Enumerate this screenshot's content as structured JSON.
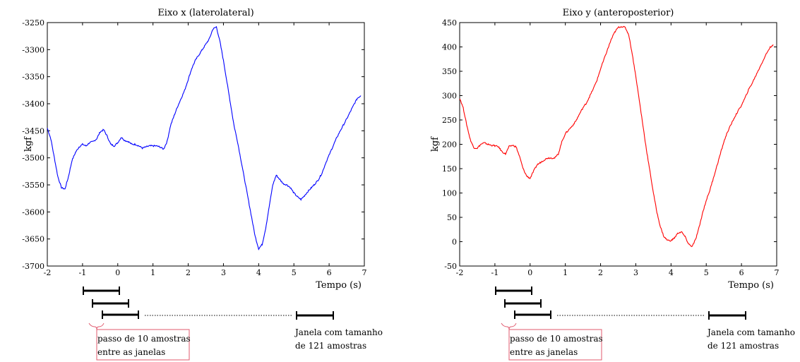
{
  "chart_data": [
    {
      "type": "line",
      "title": "Eixo x (laterolateral)",
      "xlabel": "Tempo (s)",
      "ylabel": "kgf",
      "xlim": [
        -2,
        7
      ],
      "ylim": [
        -3700,
        -3250
      ],
      "xticks": [
        "-2",
        "-1",
        "0",
        "1",
        "2",
        "3",
        "4",
        "5",
        "6",
        "7"
      ],
      "yticks": [
        "-3700",
        "-3650",
        "-3600",
        "-3550",
        "-3500",
        "-3450",
        "-3400",
        "-3350",
        "-3300",
        "-3250"
      ],
      "color": "#0000ff",
      "grid": false,
      "x": [
        -2.0,
        -1.9,
        -1.8,
        -1.7,
        -1.6,
        -1.5,
        -1.4,
        -1.3,
        -1.2,
        -1.1,
        -1.0,
        -0.9,
        -0.8,
        -0.7,
        -0.6,
        -0.5,
        -0.4,
        -0.3,
        -0.2,
        -0.1,
        0.0,
        0.1,
        0.2,
        0.3,
        0.4,
        0.5,
        0.6,
        0.7,
        0.8,
        0.9,
        1.0,
        1.1,
        1.2,
        1.3,
        1.4,
        1.5,
        1.6,
        1.7,
        1.8,
        1.9,
        2.0,
        2.1,
        2.2,
        2.3,
        2.4,
        2.5,
        2.6,
        2.7,
        2.8,
        2.9,
        3.0,
        3.1,
        3.2,
        3.3,
        3.4,
        3.5,
        3.6,
        3.7,
        3.8,
        3.9,
        4.0,
        4.1,
        4.2,
        4.3,
        4.4,
        4.5,
        4.6,
        4.7,
        4.8,
        4.9,
        5.0,
        5.1,
        5.2,
        5.3,
        5.4,
        5.5,
        5.6,
        5.7,
        5.8,
        5.9,
        6.0,
        6.1,
        6.2,
        6.3,
        6.4,
        6.5,
        6.6,
        6.7,
        6.8,
        6.9
      ],
      "y": [
        -3445,
        -3465,
        -3500,
        -3535,
        -3555,
        -3558,
        -3535,
        -3505,
        -3490,
        -3480,
        -3475,
        -3478,
        -3472,
        -3470,
        -3465,
        -3452,
        -3448,
        -3460,
        -3475,
        -3478,
        -3472,
        -3462,
        -3468,
        -3470,
        -3475,
        -3475,
        -3478,
        -3482,
        -3480,
        -3478,
        -3478,
        -3478,
        -3480,
        -3484,
        -3470,
        -3440,
        -3422,
        -3405,
        -3390,
        -3375,
        -3355,
        -3335,
        -3320,
        -3310,
        -3300,
        -3290,
        -3280,
        -3262,
        -3258,
        -3285,
        -3320,
        -3360,
        -3400,
        -3440,
        -3470,
        -3505,
        -3540,
        -3575,
        -3610,
        -3645,
        -3668,
        -3660,
        -3630,
        -3590,
        -3550,
        -3532,
        -3540,
        -3548,
        -3550,
        -3555,
        -3565,
        -3572,
        -3577,
        -3570,
        -3562,
        -3555,
        -3548,
        -3540,
        -3528,
        -3510,
        -3495,
        -3480,
        -3465,
        -3452,
        -3440,
        -3428,
        -3415,
        -3402,
        -3390,
        -3385
      ]
    },
    {
      "type": "line",
      "title": "Eixo y (anteroposterior)",
      "xlabel": "Tempo (s)",
      "ylabel": "kgf",
      "xlim": [
        -2,
        7
      ],
      "ylim": [
        -50,
        450
      ],
      "xticks": [
        "-2",
        "-1",
        "0",
        "1",
        "2",
        "3",
        "4",
        "5",
        "6",
        "7"
      ],
      "yticks": [
        "-50",
        "0",
        "50",
        "100",
        "150",
        "200",
        "250",
        "300",
        "350",
        "400",
        "450"
      ],
      "color": "#ff0000",
      "grid": false,
      "x": [
        -2.0,
        -1.9,
        -1.8,
        -1.7,
        -1.6,
        -1.5,
        -1.4,
        -1.3,
        -1.2,
        -1.1,
        -1.0,
        -0.9,
        -0.8,
        -0.7,
        -0.6,
        -0.5,
        -0.4,
        -0.3,
        -0.2,
        -0.1,
        0.0,
        0.1,
        0.2,
        0.3,
        0.4,
        0.5,
        0.6,
        0.7,
        0.8,
        0.9,
        1.0,
        1.1,
        1.2,
        1.3,
        1.4,
        1.5,
        1.6,
        1.7,
        1.8,
        1.9,
        2.0,
        2.1,
        2.2,
        2.3,
        2.4,
        2.5,
        2.6,
        2.7,
        2.8,
        2.9,
        3.0,
        3.1,
        3.2,
        3.3,
        3.4,
        3.5,
        3.6,
        3.7,
        3.8,
        3.9,
        4.0,
        4.1,
        4.2,
        4.3,
        4.4,
        4.5,
        4.6,
        4.7,
        4.8,
        4.9,
        5.0,
        5.1,
        5.2,
        5.3,
        5.4,
        5.5,
        5.6,
        5.7,
        5.8,
        5.9,
        6.0,
        6.1,
        6.2,
        6.3,
        6.4,
        6.5,
        6.6,
        6.7,
        6.8,
        6.9
      ],
      "y": [
        295,
        275,
        240,
        210,
        193,
        192,
        200,
        203,
        200,
        198,
        197,
        195,
        185,
        180,
        195,
        198,
        195,
        175,
        150,
        135,
        130,
        145,
        158,
        163,
        168,
        172,
        172,
        172,
        180,
        205,
        222,
        230,
        238,
        248,
        262,
        275,
        285,
        300,
        315,
        332,
        355,
        375,
        395,
        415,
        430,
        440,
        442,
        440,
        425,
        385,
        340,
        290,
        240,
        190,
        145,
        100,
        60,
        30,
        10,
        3,
        2,
        8,
        18,
        20,
        10,
        -5,
        -10,
        5,
        30,
        60,
        85,
        105,
        130,
        155,
        180,
        205,
        225,
        240,
        255,
        268,
        280,
        295,
        312,
        325,
        340,
        355,
        370,
        385,
        398,
        405
      ]
    }
  ],
  "annotations": [
    {
      "step_label_line1": "passo de 10 amostras",
      "step_label_line2": "entre as janelas",
      "window_label_line1": "Janela com tamanho",
      "window_label_line2": "de 121 amostras"
    },
    {
      "step_label_line1": "passo de 10 amostras",
      "step_label_line2": "entre as janelas",
      "window_label_line1": "Janela com tamanho",
      "window_label_line2": "de 121 amostras"
    }
  ],
  "colors": {
    "annotation_box": "#e05a6e",
    "axes": "#000000"
  }
}
